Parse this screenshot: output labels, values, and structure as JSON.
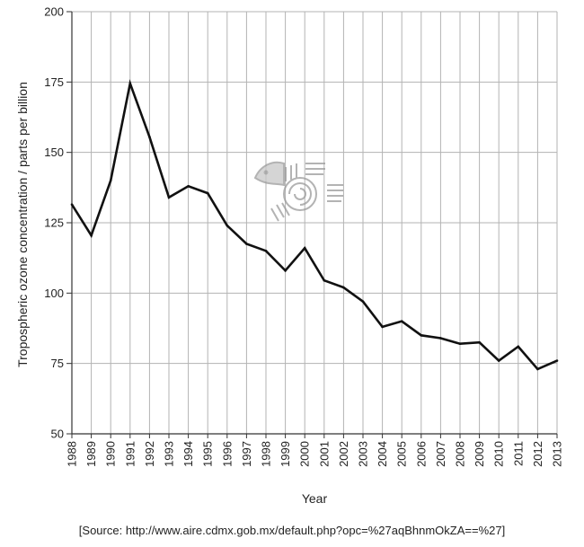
{
  "chart_data": {
    "type": "line",
    "title": "",
    "xlabel": "Year",
    "ylabel": "Tropospheric ozone concentration / parts per billion",
    "x": [
      "1988",
      "1989",
      "1990",
      "1991",
      "1992",
      "1993",
      "1994",
      "1995",
      "1996",
      "1997",
      "1998",
      "1999",
      "2000",
      "2001",
      "2002",
      "2003",
      "2004",
      "2005",
      "2006",
      "2007",
      "2008",
      "2009",
      "2010",
      "2011",
      "2012",
      "2013"
    ],
    "series": [
      {
        "values": [
          131.5,
          120.5,
          140,
          174.5,
          155.5,
          134,
          138,
          135.5,
          124,
          117.5,
          115,
          108,
          116,
          104.5,
          102,
          97,
          88,
          90,
          85,
          84,
          82,
          82.5,
          76,
          81,
          73,
          76
        ]
      }
    ],
    "yticks": [
      "50",
      "75",
      "100",
      "125",
      "150",
      "175",
      "200"
    ],
    "ylim": [
      50,
      200
    ],
    "grid": true,
    "legend": "none",
    "colors": {
      "line": "#111111",
      "grid": "#b3b3b3",
      "axis": "#333333"
    }
  },
  "source": "[Source: http://www.aire.cdmx.gob.mx/default.php?opc=%27aqBhnmOkZA==%27]",
  "watermark": {
    "icon": "aztec-glyph-logo"
  }
}
